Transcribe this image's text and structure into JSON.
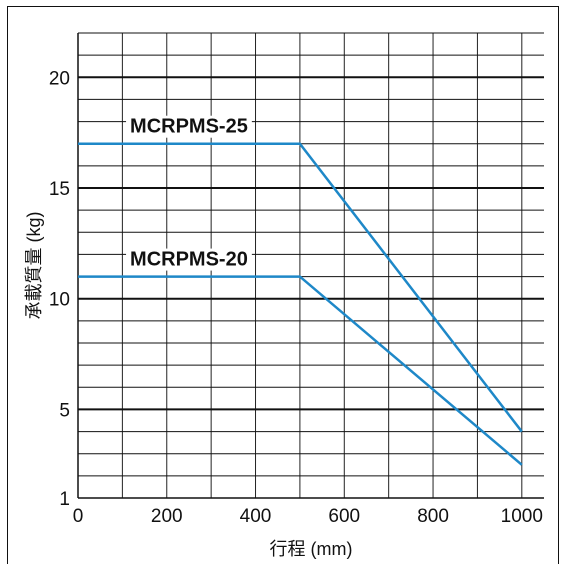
{
  "chart_data": {
    "type": "line",
    "title": "",
    "xlabel": "行程 (mm)",
    "ylabel": "承載質量 (kg)",
    "xlim": [
      0,
      1050
    ],
    "ylim": [
      1,
      22
    ],
    "x_ticks": [
      0,
      200,
      400,
      600,
      800,
      1000
    ],
    "y_ticks": [
      1,
      5,
      10,
      15,
      20
    ],
    "x_tick_labels": [
      "0",
      "200",
      "400",
      "600",
      "800",
      "1000"
    ],
    "y_tick_labels": [
      "1",
      "5",
      "10",
      "15",
      "20"
    ],
    "grid": true,
    "line_color": "#1e88c8",
    "series": [
      {
        "name": "MCRPMS-25",
        "x": [
          0,
          500,
          1000
        ],
        "y": [
          17,
          17,
          4
        ]
      },
      {
        "name": "MCRPMS-20",
        "x": [
          0,
          500,
          1000
        ],
        "y": [
          11,
          11,
          2.5
        ]
      }
    ]
  }
}
